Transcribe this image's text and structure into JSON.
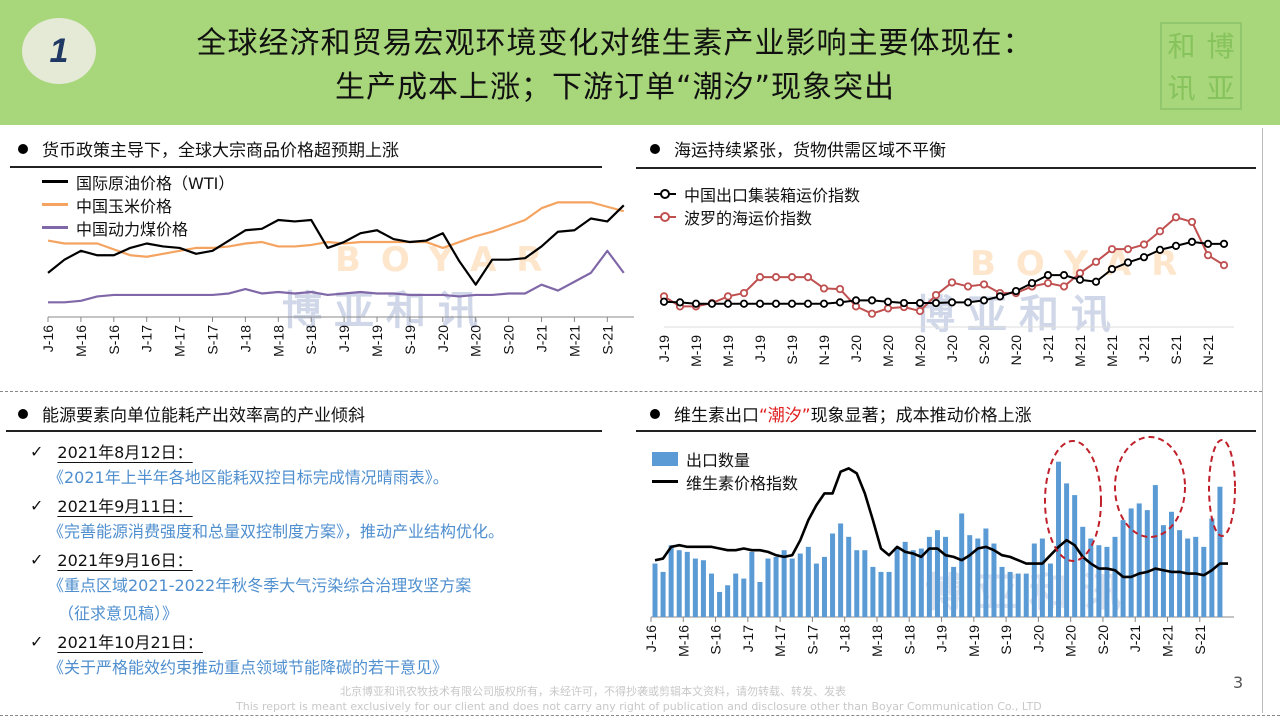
{
  "header": {
    "number": "1",
    "title_line1": "全球经济和贸易宏观环境变化对维生素产业影响主要体现在：",
    "title_line2": "生产成本上涨；下游订单“潮汐”现象突出",
    "seal_text": "博亚和讯"
  },
  "watermark": {
    "en": "BOYAR",
    "cn": "博亚和讯"
  },
  "sections": {
    "commodity": {
      "title": "货币政策主导下，全球大宗商品价格超预期上涨"
    },
    "shipping": {
      "title": "海运持续紧张，货物供需区域不平衡"
    },
    "energy": {
      "title": "能源要素向单位能耗产出效率高的产业倾斜"
    },
    "vitamin": {
      "title_pre": "维生素出口",
      "title_red": "“潮汐”",
      "title_post": "现象显著；成本推动价格上涨"
    }
  },
  "energy_items": [
    {
      "date": "2021年8月12日：",
      "doc": "《2021年上半年各地区能耗双控目标完成情况晴雨表》。"
    },
    {
      "date": "2021年9月11日：",
      "doc": "《完善能源消费强度和总量双控制度方案》，推动产业结构优化。"
    },
    {
      "date": "2021年9月16日：",
      "doc": "《重点区域2021-2022年秋冬季大气污染综合治理攻坚方案",
      "doc2": "（征求意见稿）》"
    },
    {
      "date": "2021年10月21日：",
      "doc": "《关于严格能效约束推动重点领域节能降碳的若干意见》"
    }
  ],
  "footer": {
    "cn": "北京博亚和讯农牧技术有限公司版权所有，未经许可，不得抄袭或剪辑本文资料，请勿转载、转发、发表",
    "en": "This report is meant exclusively for our client and does not carry any right of publication and disclosure other than Boyar Communication Co., LTD",
    "page": "3"
  },
  "colors": {
    "header_bg": "#a8d67a",
    "blue_text": "#4f8fcf",
    "red": "#e02020",
    "oil": "#000000",
    "corn": "#f4a460",
    "coal": "#8068a8",
    "ccfi": "#000000",
    "bdi": "#c05050",
    "bars": "#5b9bd5"
  },
  "chart_data": [
    {
      "type": "line",
      "x": [
        "2016-01",
        "2016-03",
        "2016-05",
        "2016-07",
        "2016-09",
        "2016-11",
        "2017-01",
        "2017-03",
        "2017-05",
        "2017-07",
        "2017-09",
        "2017-11",
        "2018-01",
        "2018-03",
        "2018-05",
        "2018-07",
        "2018-09",
        "2018-11",
        "2019-01",
        "2019-03",
        "2019-05",
        "2019-07",
        "2019-09",
        "2019-11",
        "2020-01",
        "2020-03",
        "2020-05",
        "2020-07",
        "2020-09",
        "2020-11",
        "2021-01",
        "2021-03",
        "2021-05",
        "2021-07",
        "2021-09",
        "2021-11"
      ],
      "x_tick_labels": [
        "J-16",
        "M-16",
        "S-16",
        "J-17",
        "M-17",
        "S-17",
        "J-18",
        "M-18",
        "S-18",
        "J-19",
        "M-19",
        "S-19",
        "J-20",
        "M-20",
        "S-20",
        "J-21",
        "M-21",
        "S-21"
      ],
      "y_axis_shown": false,
      "ylim": [
        0,
        100
      ],
      "legend_position": "top-left",
      "series": [
        {
          "name": "国际原油价格（WTI）",
          "color": "#000000",
          "values": [
            30,
            39,
            45,
            42,
            42,
            47,
            50,
            48,
            47,
            43,
            45,
            52,
            59,
            60,
            66,
            65,
            66,
            47,
            51,
            57,
            59,
            53,
            51,
            52,
            57,
            38,
            22,
            39,
            39,
            40,
            48,
            58,
            59,
            67,
            65,
            76
          ]
        },
        {
          "name": "中国玉米价格",
          "color": "#f4a460",
          "values": [
            52,
            50,
            50,
            50,
            46,
            42,
            41,
            43,
            45,
            47,
            47,
            48,
            50,
            51,
            48,
            48,
            49,
            51,
            50,
            51,
            51,
            51,
            51,
            51,
            47,
            51,
            55,
            58,
            62,
            66,
            74,
            78,
            78,
            78,
            75,
            72
          ]
        },
        {
          "name": "中国动力煤价格",
          "color": "#8068a8",
          "values": [
            10,
            10,
            11,
            14,
            15,
            15,
            15,
            15,
            15,
            15,
            15,
            16,
            19,
            16,
            17,
            16,
            17,
            15,
            16,
            17,
            16,
            16,
            15,
            15,
            15,
            14,
            15,
            15,
            16,
            16,
            22,
            18,
            24,
            30,
            45,
            30
          ]
        }
      ]
    },
    {
      "type": "line",
      "x": [
        "2019-01",
        "2019-02",
        "2019-03",
        "2019-04",
        "2019-05",
        "2019-06",
        "2019-07",
        "2019-08",
        "2019-09",
        "2019-10",
        "2019-11",
        "2019-12",
        "2020-01",
        "2020-02",
        "2020-03",
        "2020-04",
        "2020-05",
        "2020-06",
        "2020-07",
        "2020-08",
        "2020-09",
        "2020-10",
        "2020-11",
        "2020-12",
        "2021-01",
        "2021-02",
        "2021-03",
        "2021-04",
        "2021-05",
        "2021-06",
        "2021-07",
        "2021-08",
        "2021-09",
        "2021-10",
        "2021-11",
        "2021-12"
      ],
      "x_tick_labels": [
        "J-19",
        "M-19",
        "M-19",
        "J-19",
        "S-19",
        "N-19",
        "J-20",
        "M-20",
        "M-20",
        "J-20",
        "S-20",
        "N-20",
        "J-21",
        "M-21",
        "M-21",
        "J-21",
        "S-21",
        "N-21"
      ],
      "y_axis_shown": false,
      "ylim": [
        0,
        100
      ],
      "legend_position": "top-left",
      "series": [
        {
          "name": "中国出口集装箱运价指数",
          "color": "#000000",
          "marker": "circle",
          "values": [
            16,
            15.5,
            14.5,
            14.5,
            14.5,
            14.5,
            14.5,
            14.5,
            14.5,
            14.5,
            14.5,
            15.5,
            17,
            17,
            16,
            15,
            15,
            15,
            15.5,
            15.5,
            17,
            20,
            24,
            30,
            36,
            36,
            32.5,
            31,
            40.5,
            45.5,
            49.5,
            55,
            58,
            61,
            59.5,
            59.5
          ]
        },
        {
          "name": "波罗的海运价指数",
          "color": "#c05050",
          "marker": "circle",
          "values": [
            20,
            12.5,
            12.5,
            15,
            20,
            22.5,
            34.5,
            34.5,
            34.5,
            34.5,
            26,
            25.5,
            12.5,
            7,
            11,
            12,
            9,
            21,
            30.5,
            27.5,
            29,
            22.5,
            22.5,
            27.5,
            30,
            27.5,
            37.5,
            46,
            55.5,
            55.5,
            59,
            69,
            79.5,
            76,
            51,
            43.5
          ]
        }
      ]
    },
    {
      "type": "bar",
      "x_start": "2016-01",
      "x_tick_labels": [
        "J-16",
        "M-16",
        "S-16",
        "J-17",
        "M-17",
        "S-17",
        "J-18",
        "M-18",
        "S-18",
        "J-19",
        "M-19",
        "S-19",
        "J-20",
        "M-20",
        "S-20",
        "J-21",
        "M-21",
        "S-21"
      ],
      "y_axis_shown": false,
      "ylim": [
        0,
        100
      ],
      "legend_position": "top-left",
      "series": [
        {
          "name": "出口数量",
          "type": "bar",
          "color": "#5b9bd5",
          "values": [
            32,
            27,
            43,
            40,
            39,
            35,
            34,
            26,
            15,
            19,
            26,
            23,
            39,
            21,
            35,
            36,
            40,
            35,
            38,
            42,
            32,
            36,
            50,
            56,
            48,
            40,
            40,
            30,
            27,
            27,
            42,
            45,
            40,
            41,
            48,
            52,
            48,
            30,
            62,
            49,
            47,
            53,
            44,
            30,
            27,
            26,
            26,
            44,
            47,
            32,
            93,
            80,
            73,
            54,
            47,
            43,
            42,
            48,
            58,
            65,
            68,
            64,
            79,
            55,
            63,
            52,
            47,
            48,
            42,
            59,
            78
          ]
        },
        {
          "name": "维生素价格指数",
          "type": "line",
          "color": "#000000",
          "values": [
            34,
            35,
            42,
            43,
            42,
            42,
            42,
            42,
            41,
            40,
            40,
            41,
            40,
            40,
            39,
            37,
            36,
            37,
            46,
            58,
            67,
            74,
            74,
            87,
            89,
            86,
            74,
            58,
            41,
            37,
            42,
            39,
            38,
            36,
            41,
            41,
            37,
            36,
            34,
            37,
            41,
            42,
            40,
            37,
            36,
            34,
            32,
            32,
            32,
            37,
            42,
            46,
            43,
            36,
            32,
            29,
            29,
            28,
            24,
            24,
            26,
            27,
            29,
            28,
            27,
            27,
            26,
            26,
            25,
            28,
            32,
            32
          ]
        }
      ],
      "annotations": [
        {
          "type": "dashed-ellipse",
          "color": "#c0202a",
          "period": [
            "2020-02",
            "2020-05"
          ]
        },
        {
          "type": "dashed-ellipse",
          "color": "#c0202a",
          "period": [
            "2020-12",
            "2021-04"
          ]
        },
        {
          "type": "dashed-ellipse",
          "color": "#c0202a",
          "period": [
            "2021-10",
            "2021-11"
          ]
        }
      ]
    }
  ]
}
